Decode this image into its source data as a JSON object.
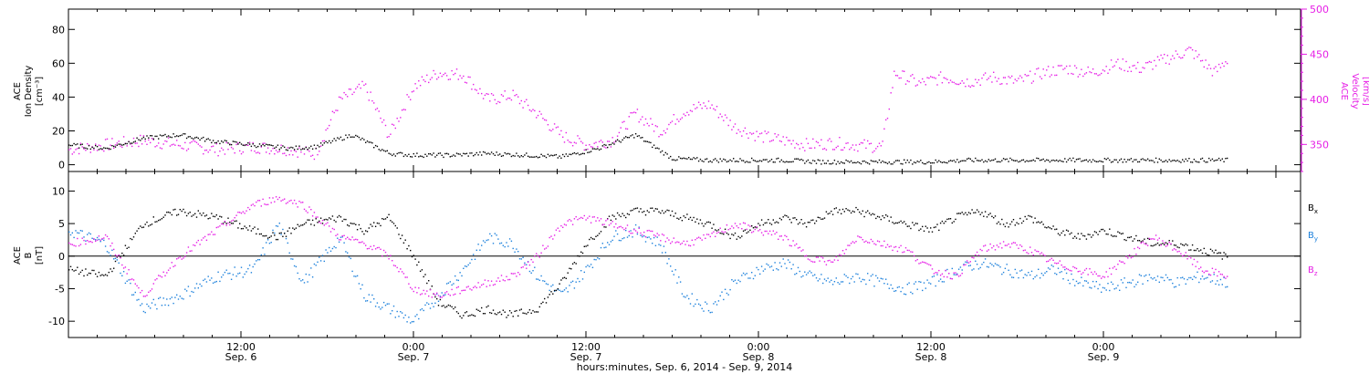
{
  "chart_data": [
    {
      "type": "scatter",
      "panel": "top",
      "left_axis": {
        "label_lines": [
          "ACE",
          "Ion Density",
          "[cm⁻³]"
        ],
        "ylim": [
          -4,
          92
        ],
        "ticks": [
          0,
          20,
          40,
          60,
          80
        ]
      },
      "right_axis": {
        "label_lines": [
          "ACE",
          "Velocity",
          "[km/s]"
        ],
        "ylim": [
          320,
          500
        ],
        "ticks": [
          350,
          400,
          450,
          500
        ],
        "color": "#e61ee6"
      },
      "xlim": [
        0,
        100
      ],
      "series": [
        {
          "axis": "left",
          "color": "#000000",
          "x": [
            0,
            3,
            6,
            9,
            12,
            15,
            18,
            20,
            23,
            26,
            28,
            31,
            34,
            37,
            40,
            43,
            46,
            49,
            52,
            55,
            58,
            61,
            64,
            67,
            70,
            73,
            76,
            79,
            82,
            85,
            88,
            90,
            92,
            94
          ],
          "y": [
            12,
            10,
            16,
            18,
            14,
            12,
            10,
            11,
            18,
            7,
            6,
            6,
            7,
            6,
            5,
            10,
            18,
            4,
            3,
            3,
            3,
            2,
            2,
            2,
            2,
            3,
            3,
            3,
            3,
            3,
            3,
            3,
            3,
            3
          ]
        },
        {
          "axis": "right",
          "color": "#e61ee6",
          "x": [
            0,
            3,
            6,
            9,
            12,
            15,
            18,
            20,
            22,
            24,
            26,
            28,
            30,
            32,
            34,
            36,
            38,
            40,
            42,
            44,
            46,
            48,
            50,
            52,
            54,
            56,
            58,
            60,
            62,
            64,
            66,
            67,
            69,
            71,
            73,
            75,
            77,
            79,
            81,
            83,
            85,
            87,
            89,
            91,
            93,
            94
          ],
          "y": [
            345,
            350,
            355,
            350,
            345,
            348,
            345,
            340,
            400,
            415,
            360,
            415,
            430,
            428,
            400,
            405,
            385,
            360,
            350,
            355,
            385,
            365,
            388,
            395,
            370,
            360,
            355,
            350,
            352,
            350,
            348,
            430,
            418,
            425,
            420,
            425,
            420,
            430,
            435,
            430,
            440,
            435,
            445,
            455,
            430,
            445
          ]
        }
      ]
    },
    {
      "type": "scatter",
      "panel": "bottom",
      "left_axis": {
        "label_lines": [
          "ACE",
          "B",
          "[nT]"
        ],
        "ylim": [
          -12.5,
          13
        ],
        "ticks": [
          -10,
          -5,
          0,
          5,
          10
        ]
      },
      "xlim": [
        0,
        100
      ],
      "zero_line": true,
      "legend": [
        "Bx",
        "By",
        "Bz"
      ],
      "series": [
        {
          "name": "Bx",
          "color": "#000000",
          "x": [
            0,
            3,
            6,
            9,
            12,
            15,
            17,
            19,
            22,
            24,
            26,
            28,
            30,
            32,
            34,
            36,
            38,
            40,
            42,
            44,
            46,
            48,
            50,
            52,
            54,
            56,
            58,
            60,
            62,
            64,
            66,
            68,
            70,
            72,
            74,
            76,
            78,
            80,
            82,
            84,
            86,
            88,
            90,
            92,
            94
          ],
          "y": [
            -2,
            -3,
            5,
            7,
            6,
            4,
            3,
            5,
            6,
            4,
            6,
            0,
            -7,
            -9,
            -8,
            -9,
            -8,
            -4,
            2,
            6,
            7,
            7,
            6,
            5,
            3,
            5,
            6,
            5,
            7,
            7,
            6,
            5,
            4,
            6,
            7,
            5,
            6,
            4,
            3,
            4,
            3,
            2,
            2,
            1,
            0
          ]
        },
        {
          "name": "By",
          "color": "#1e82dc",
          "x": [
            0,
            3,
            6,
            9,
            12,
            15,
            17,
            19,
            22,
            24,
            26,
            28,
            30,
            32,
            34,
            36,
            38,
            40,
            42,
            44,
            46,
            48,
            50,
            52,
            54,
            56,
            58,
            60,
            62,
            64,
            66,
            68,
            70,
            72,
            74,
            76,
            78,
            80,
            82,
            84,
            86,
            88,
            90,
            92,
            94
          ],
          "y": [
            4,
            2,
            -8,
            -6,
            -3,
            -2,
            5,
            -4,
            3,
            -6,
            -8,
            -10,
            -6,
            -2,
            3,
            2,
            -3,
            -6,
            -2,
            3,
            4,
            2,
            -6,
            -8,
            -4,
            -2,
            -1,
            -3,
            -4,
            -3,
            -4,
            -5,
            -4,
            -2,
            -1,
            -2,
            -3,
            -2,
            -4,
            -5,
            -4,
            -3,
            -4,
            -3,
            -4
          ]
        },
        {
          "name": "Bz",
          "color": "#e61ee6",
          "x": [
            0,
            3,
            6,
            9,
            12,
            15,
            17,
            19,
            22,
            24,
            26,
            28,
            30,
            32,
            34,
            36,
            38,
            40,
            42,
            44,
            46,
            48,
            50,
            52,
            54,
            56,
            58,
            60,
            62,
            64,
            66,
            68,
            70,
            72,
            74,
            76,
            78,
            80,
            82,
            84,
            86,
            88,
            90,
            92,
            94
          ],
          "y": [
            2,
            3,
            -6,
            0,
            4,
            8,
            9,
            8,
            3,
            2,
            0,
            -5,
            -6,
            -5,
            -4,
            -3,
            0,
            5,
            6,
            5,
            4,
            3,
            2,
            3,
            5,
            4,
            3,
            0,
            -1,
            3,
            2,
            1,
            -2,
            -3,
            1,
            2,
            1,
            -1,
            -2,
            -3,
            0,
            3,
            1,
            -2,
            -3
          ]
        }
      ]
    }
  ],
  "x_axis": {
    "tick_positions": [
      0,
      14,
      28,
      42,
      56,
      70,
      84,
      98
    ],
    "minor_per_major": 6,
    "labels": [
      {
        "x": 14,
        "time": "12:00",
        "date": "Sep. 6"
      },
      {
        "x": 28,
        "time": "0:00",
        "date": "Sep. 7"
      },
      {
        "x": 42,
        "time": "12:00",
        "date": "Sep. 7"
      },
      {
        "x": 56,
        "time": "0:00",
        "date": "Sep. 8"
      },
      {
        "x": 70,
        "time": "12:00",
        "date": "Sep. 8"
      },
      {
        "x": 84,
        "time": "0:00",
        "date": "Sep. 9"
      }
    ],
    "title": "hours:minutes, Sep.  6, 2014 - Sep.  9, 2014"
  }
}
